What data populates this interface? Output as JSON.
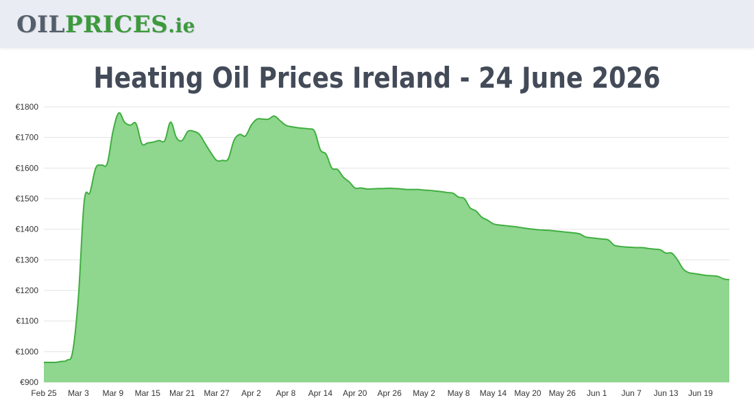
{
  "header": {
    "logo_oil": "OIL",
    "logo_prices": "PRICES",
    "logo_tld": ".ie"
  },
  "colors": {
    "header_bg": "#e9ecf3",
    "line": "#3fae3f",
    "area": "#8fd68f",
    "title": "#434a58"
  },
  "chart_data": {
    "type": "area",
    "title": "Heating Oil Prices Ireland - 24 June 2026",
    "xlabel": "",
    "ylabel": "",
    "ylim": [
      900,
      1800
    ],
    "y_ticks": [
      "€900",
      "€1000",
      "€1100",
      "€1200",
      "€1300",
      "€1400",
      "€1500",
      "€1600",
      "€1700",
      "€1800"
    ],
    "x_ticks": [
      "Feb 25",
      "Mar 3",
      "Mar 9",
      "Mar 15",
      "Mar 21",
      "Mar 27",
      "Apr 2",
      "Apr 8",
      "Apr 14",
      "Apr 20",
      "Apr 26",
      "May 2",
      "May 8",
      "May 14",
      "May 20",
      "May 26",
      "Jun 1",
      "Jun 7",
      "Jun 13",
      "Jun 19"
    ],
    "grid": true,
    "legend": "none",
    "x": [
      "Feb 25",
      "Feb 26",
      "Feb 27",
      "Feb 28",
      "Mar 1",
      "Mar 2",
      "Mar 3",
      "Mar 4",
      "Mar 5",
      "Mar 6",
      "Mar 7",
      "Mar 8",
      "Mar 9",
      "Mar 10",
      "Mar 11",
      "Mar 12",
      "Mar 13",
      "Mar 14",
      "Mar 15",
      "Mar 16",
      "Mar 17",
      "Mar 18",
      "Mar 19",
      "Mar 20",
      "Mar 21",
      "Mar 22",
      "Mar 23",
      "Mar 24",
      "Mar 25",
      "Mar 26",
      "Mar 27",
      "Mar 28",
      "Mar 29",
      "Mar 30",
      "Mar 31",
      "Apr 1",
      "Apr 2",
      "Apr 3",
      "Apr 4",
      "Apr 5",
      "Apr 6",
      "Apr 7",
      "Apr 8",
      "Apr 9",
      "Apr 10",
      "Apr 11",
      "Apr 12",
      "Apr 13",
      "Apr 14",
      "Apr 15",
      "Apr 16",
      "Apr 17",
      "Apr 18",
      "Apr 19",
      "Apr 20",
      "Apr 21",
      "Apr 22",
      "Apr 23",
      "Apr 24",
      "Apr 25",
      "Apr 26",
      "Apr 27",
      "Apr 28",
      "Apr 29",
      "Apr 30",
      "May 1",
      "May 2",
      "May 3",
      "May 4",
      "May 5",
      "May 6",
      "May 7",
      "May 8",
      "May 9",
      "May 10",
      "May 11",
      "May 12",
      "May 13",
      "May 14",
      "May 15",
      "May 16",
      "May 17",
      "May 18",
      "May 19",
      "May 20",
      "May 21",
      "May 22",
      "May 23",
      "May 24",
      "May 25",
      "May 26",
      "May 27",
      "May 28",
      "May 29",
      "May 30",
      "May 31",
      "Jun 1",
      "Jun 2",
      "Jun 3",
      "Jun 4",
      "Jun 5",
      "Jun 6",
      "Jun 7",
      "Jun 8",
      "Jun 9",
      "Jun 10",
      "Jun 11",
      "Jun 12",
      "Jun 13",
      "Jun 14",
      "Jun 15",
      "Jun 16",
      "Jun 17",
      "Jun 18",
      "Jun 19",
      "Jun 20",
      "Jun 21",
      "Jun 22",
      "Jun 23",
      "Jun 24"
    ],
    "values": [
      965,
      965,
      965,
      968,
      972,
      1000,
      1180,
      1490,
      1520,
      1600,
      1610,
      1615,
      1720,
      1780,
      1750,
      1740,
      1745,
      1680,
      1682,
      1685,
      1690,
      1690,
      1750,
      1700,
      1690,
      1720,
      1720,
      1710,
      1680,
      1650,
      1625,
      1625,
      1630,
      1690,
      1710,
      1705,
      1740,
      1760,
      1760,
      1760,
      1770,
      1755,
      1740,
      1735,
      1732,
      1730,
      1728,
      1720,
      1660,
      1645,
      1600,
      1595,
      1570,
      1555,
      1535,
      1535,
      1532,
      1532,
      1533,
      1533,
      1534,
      1533,
      1532,
      1530,
      1530,
      1530,
      1528,
      1527,
      1525,
      1523,
      1520,
      1518,
      1505,
      1500,
      1470,
      1460,
      1440,
      1430,
      1418,
      1414,
      1412,
      1410,
      1408,
      1405,
      1402,
      1400,
      1398,
      1397,
      1396,
      1394,
      1392,
      1390,
      1388,
      1385,
      1375,
      1372,
      1370,
      1368,
      1365,
      1348,
      1344,
      1342,
      1341,
      1340,
      1340,
      1337,
      1335,
      1333,
      1322,
      1322,
      1300,
      1270,
      1258,
      1255,
      1252,
      1249,
      1248,
      1246,
      1238,
      1235
    ]
  }
}
